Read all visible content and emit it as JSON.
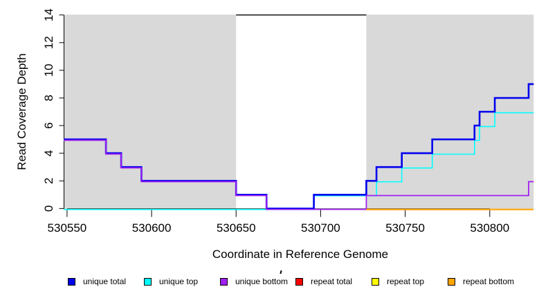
{
  "chart_data": {
    "type": "line",
    "subtype": "step",
    "title": "",
    "xlabel": "Coordinate in Reference Genome",
    "ylabel": "Read Coverage Depth",
    "xlim": [
      530548,
      530826
    ],
    "ylim": [
      0,
      14
    ],
    "x_ticks": [
      530550,
      530600,
      530650,
      530700,
      530750,
      530800
    ],
    "y_ticks": [
      0,
      2,
      4,
      6,
      8,
      10,
      12,
      14
    ],
    "grid": false,
    "legend_position": "bottom",
    "shaded_regions": [
      {
        "from": 530548,
        "to": 530650,
        "color": "#d9d9d9"
      },
      {
        "from": 530727,
        "to": 530826,
        "color": "#d9d9d9"
      }
    ],
    "repeat_annotation_line": {
      "from": 530650,
      "to": 530727,
      "at_y": 14,
      "color": "#000000"
    },
    "series": [
      {
        "name": "unique total",
        "color": "#0000ee",
        "steps": [
          [
            530548,
            5
          ],
          [
            530573,
            4
          ],
          [
            530582,
            3
          ],
          [
            530594,
            2
          ],
          [
            530650,
            1
          ],
          [
            530668,
            0
          ],
          [
            530696,
            1
          ],
          [
            530727,
            2
          ],
          [
            530733,
            3
          ],
          [
            530748,
            4
          ],
          [
            530766,
            5
          ],
          [
            530791,
            6
          ],
          [
            530794,
            7
          ],
          [
            530803,
            8
          ],
          [
            530823,
            9
          ],
          [
            530826,
            9
          ]
        ]
      },
      {
        "name": "unique top",
        "color": "#00ffff",
        "steps": [
          [
            530548,
            0
          ],
          [
            530696,
            1
          ],
          [
            530733,
            2
          ],
          [
            530748,
            3
          ],
          [
            530766,
            4
          ],
          [
            530791,
            5
          ],
          [
            530794,
            6
          ],
          [
            530803,
            7
          ],
          [
            530826,
            7
          ]
        ]
      },
      {
        "name": "unique bottom",
        "color": "#a020f0",
        "steps": [
          [
            530548,
            5
          ],
          [
            530573,
            4
          ],
          [
            530582,
            3
          ],
          [
            530594,
            2
          ],
          [
            530650,
            1
          ],
          [
            530668,
            0
          ],
          [
            530727,
            1
          ],
          [
            530823,
            2
          ],
          [
            530826,
            2
          ]
        ]
      },
      {
        "name": "repeat total",
        "color": "#ff0000",
        "steps": []
      },
      {
        "name": "repeat top",
        "color": "#ffff00",
        "steps": []
      },
      {
        "name": "repeat bottom",
        "color": "#ffa500",
        "steps": [
          [
            530727,
            0
          ],
          [
            530826,
            0
          ]
        ]
      }
    ]
  }
}
